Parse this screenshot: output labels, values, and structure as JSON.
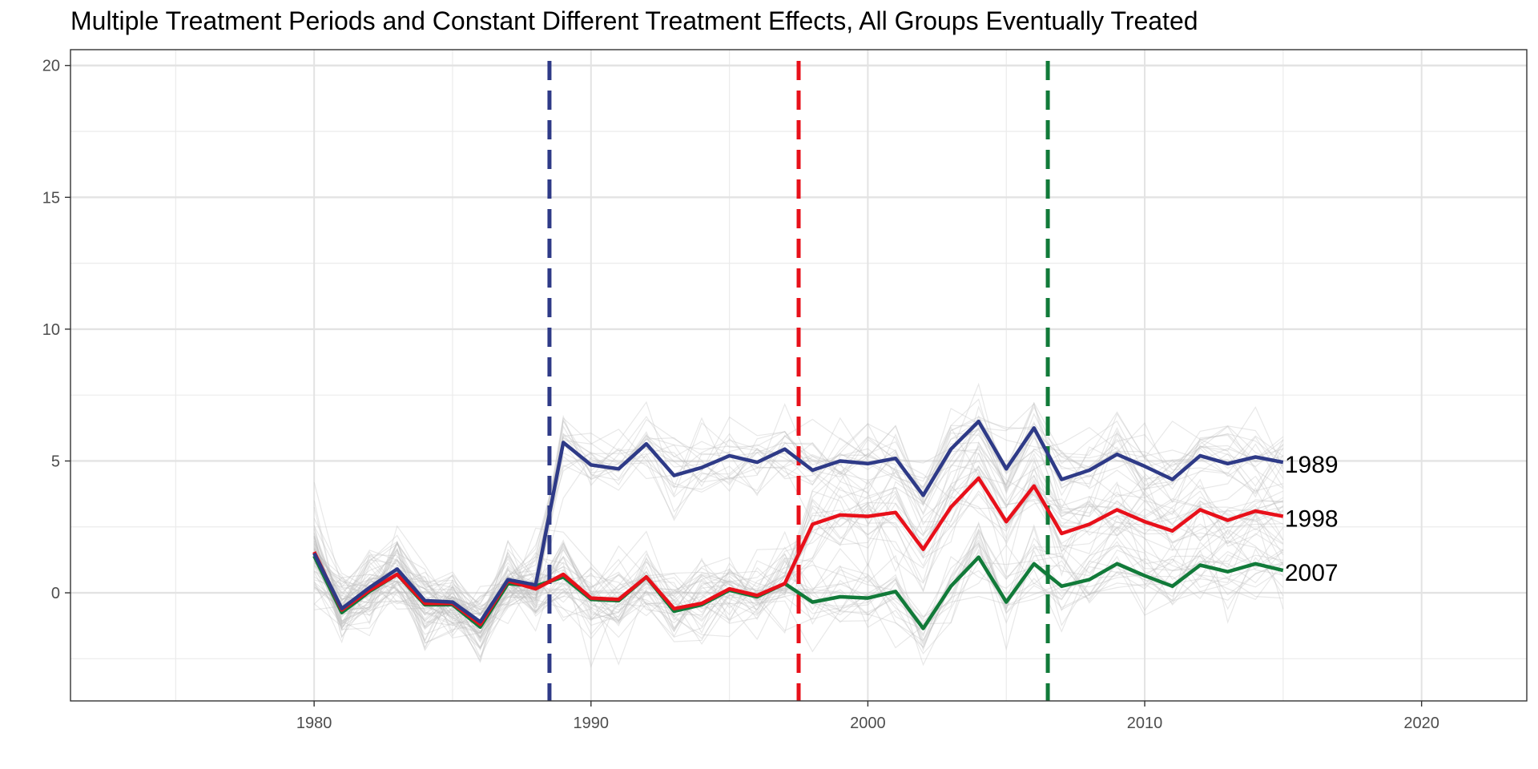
{
  "chart_data": {
    "type": "line",
    "title": "Multiple Treatment Periods and Constant Different Treatment Effects, All Groups Eventually Treated",
    "xlabel": "",
    "ylabel": "",
    "xlim": [
      1971.2,
      2023.8
    ],
    "ylim": [
      -4.1,
      20.6
    ],
    "x_ticks": [
      1980,
      1990,
      2000,
      2010,
      2020
    ],
    "y_ticks": [
      0,
      5,
      10,
      15,
      20
    ],
    "grid": true,
    "theme": "bw",
    "x": [
      1980,
      1981,
      1982,
      1983,
      1984,
      1985,
      1986,
      1987,
      1988,
      1989,
      1990,
      1991,
      1992,
      1993,
      1994,
      1995,
      1996,
      1997,
      1998,
      1999,
      2000,
      2001,
      2002,
      2003,
      2004,
      2005,
      2006,
      2007,
      2008,
      2009,
      2010,
      2011,
      2012,
      2013,
      2014,
      2015
    ],
    "series": [
      {
        "name": "1989",
        "color": "#2e3a87",
        "treatment_year": 1988.5,
        "values": [
          1.5,
          -0.6,
          0.2,
          0.9,
          -0.3,
          -0.35,
          -1.1,
          0.5,
          0.3,
          5.7,
          4.85,
          4.7,
          5.65,
          4.45,
          4.75,
          5.2,
          4.95,
          5.45,
          4.65,
          5.0,
          4.9,
          5.1,
          3.7,
          5.45,
          6.5,
          4.7,
          6.25,
          4.3,
          4.65,
          5.25,
          4.8,
          4.3,
          5.2,
          4.9,
          5.15,
          4.95
        ]
      },
      {
        "name": "1998",
        "color": "#e8101a",
        "treatment_year": 1997.5,
        "values": [
          1.55,
          -0.65,
          0.1,
          0.7,
          -0.4,
          -0.4,
          -1.2,
          0.45,
          0.15,
          0.7,
          -0.2,
          -0.25,
          0.6,
          -0.6,
          -0.4,
          0.15,
          -0.1,
          0.35,
          2.6,
          2.95,
          2.9,
          3.05,
          1.65,
          3.25,
          4.35,
          2.7,
          4.05,
          2.25,
          2.6,
          3.15,
          2.7,
          2.35,
          3.15,
          2.75,
          3.1,
          2.9
        ]
      },
      {
        "name": "2007",
        "color": "#117a39",
        "treatment_year": 2006.5,
        "values": [
          1.4,
          -0.75,
          0.05,
          0.7,
          -0.45,
          -0.45,
          -1.3,
          0.35,
          0.25,
          0.6,
          -0.25,
          -0.3,
          0.6,
          -0.7,
          -0.45,
          0.1,
          -0.15,
          0.35,
          -0.35,
          -0.15,
          -0.2,
          0.05,
          -1.35,
          0.25,
          1.35,
          -0.35,
          1.1,
          0.25,
          0.5,
          1.1,
          0.65,
          0.25,
          1.05,
          0.8,
          1.1,
          0.85
        ]
      }
    ],
    "simulated_lines": {
      "count": 60,
      "color": "#bdbdbd",
      "spread_sd": 0.75
    },
    "end_labels": [
      "1989",
      "1998",
      "2007"
    ]
  }
}
